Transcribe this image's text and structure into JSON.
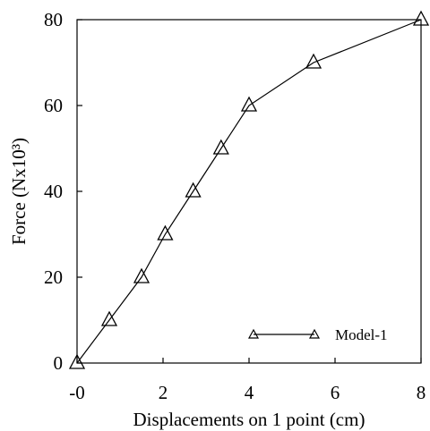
{
  "chart_data": {
    "type": "line",
    "xlabel": "Displacements on 1 point (cm)",
    "ylabel": "Force (Nx10³)",
    "xlim": [
      0,
      8
    ],
    "ylim": [
      0,
      80
    ],
    "x_ticks": [
      0,
      2,
      4,
      6,
      8
    ],
    "x_tick_labels": [
      "-0",
      "2",
      "4",
      "6",
      "8"
    ],
    "y_ticks": [
      0,
      20,
      40,
      60,
      80
    ],
    "y_tick_labels": [
      "0",
      "20",
      "40",
      "60",
      "80"
    ],
    "grid": false,
    "legend_position": "bottom-right",
    "series": [
      {
        "name": "Model-1",
        "marker": "open-triangle",
        "color": "#000000",
        "x": [
          0,
          0.75,
          1.5,
          2.05,
          2.7,
          3.35,
          4.0,
          5.5,
          8.0
        ],
        "y": [
          0,
          10,
          20,
          30,
          40,
          50,
          60,
          70,
          80
        ]
      }
    ]
  }
}
